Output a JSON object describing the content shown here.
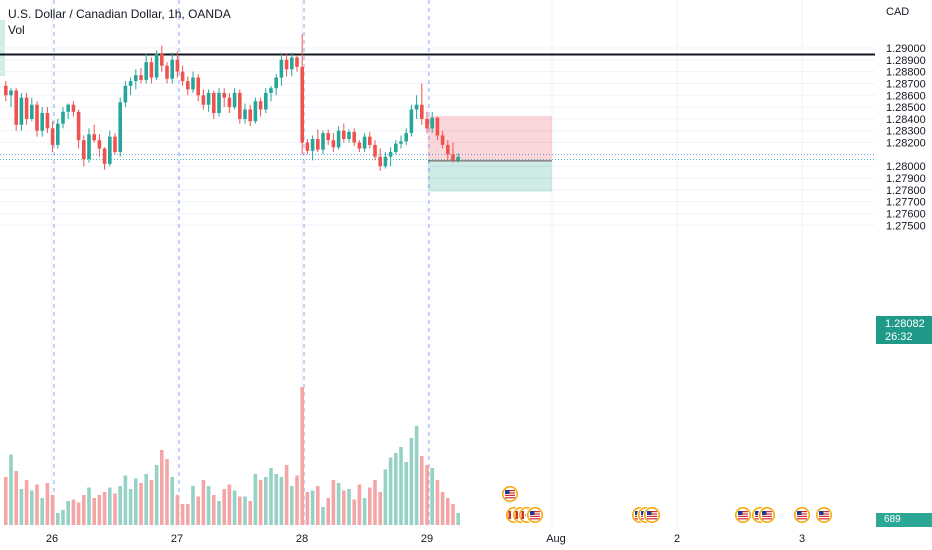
{
  "header": {
    "title": "U.S. Dollar / Canadian Dollar, 1h, OANDA",
    "indicator": "Vol"
  },
  "price_axis": {
    "currency": "CAD",
    "last_price": "1.28082",
    "countdown": "26:32",
    "ticks": [
      "1.29000",
      "1.28900",
      "1.28800",
      "1.28700",
      "1.28600",
      "1.28500",
      "1.28400",
      "1.28300",
      "1.28200",
      "1.28000",
      "1.27900",
      "1.27800",
      "1.27700",
      "1.27600",
      "1.27500"
    ]
  },
  "time_axis": {
    "labels": [
      "26",
      "27",
      "28",
      "29",
      "Aug",
      "2",
      "3"
    ]
  },
  "volume_pane": {
    "last_value": "689"
  },
  "colors": {
    "bull": "#26a69a",
    "bear": "#ef5350",
    "bull_vol": "#95d2c5",
    "bear_vol": "#f4a6a6",
    "session": "#2962ff",
    "grid": "#f0f3fa",
    "axis_text": "#131722"
  },
  "events": {
    "row1": [
      {
        "icon": "us-flag-event-icon"
      }
    ],
    "row2": [
      {
        "icon": "ca-flag-event-icon"
      },
      {
        "icon": "ca-flag-event-icon"
      },
      {
        "icon": "ca-flag-event-icon"
      },
      {
        "icon": "us-flag-event-icon"
      },
      {
        "icon": "us-flag-event-icon"
      },
      {
        "icon": "us-flag-event-icon"
      },
      {
        "icon": "us-flag-event-icon"
      },
      {
        "icon": "us-flag-event-icon"
      },
      {
        "icon": "us-flag-event-icon"
      },
      {
        "icon": "us-flag-event-icon"
      },
      {
        "icon": "us-flag-event-icon"
      }
    ]
  },
  "chart_data": {
    "type": "candlestick",
    "symbol": "USD/CAD",
    "interval": "1h",
    "ylim": [
      1.2744,
      1.292
    ],
    "resistance_level": 1.28945,
    "last_price": 1.28082,
    "position": {
      "type": "short",
      "entry": 1.28045,
      "stop": 1.28425,
      "target": 1.27785,
      "start_time": "29 ~00:00",
      "end_time": "29 ~10:00"
    },
    "ohlc": [
      [
        1.2868,
        1.2872,
        1.2855,
        1.286
      ],
      [
        1.286,
        1.2866,
        1.285,
        1.2864
      ],
      [
        1.2864,
        1.2866,
        1.283,
        1.2835
      ],
      [
        1.2835,
        1.2862,
        1.283,
        1.2858
      ],
      [
        1.2858,
        1.2862,
        1.2835,
        1.284
      ],
      [
        1.284,
        1.2858,
        1.2838,
        1.2852
      ],
      [
        1.2852,
        1.2855,
        1.2825,
        1.283
      ],
      [
        1.283,
        1.285,
        1.2825,
        1.2845
      ],
      [
        1.2845,
        1.285,
        1.2828,
        1.2832
      ],
      [
        1.2832,
        1.2838,
        1.2812,
        1.2818
      ],
      [
        1.2818,
        1.284,
        1.2815,
        1.2836
      ],
      [
        1.2836,
        1.285,
        1.2832,
        1.2846
      ],
      [
        1.2846,
        1.2853,
        1.284,
        1.2852
      ],
      [
        1.2852,
        1.2855,
        1.2842,
        1.2846
      ],
      [
        1.2846,
        1.2848,
        1.2815,
        1.2822
      ],
      [
        1.2822,
        1.2826,
        1.28,
        1.2806
      ],
      [
        1.2806,
        1.2832,
        1.2803,
        1.2827
      ],
      [
        1.2827,
        1.2835,
        1.282,
        1.2822
      ],
      [
        1.2822,
        1.2827,
        1.2808,
        1.2815
      ],
      [
        1.2815,
        1.2816,
        1.2797,
        1.2802
      ],
      [
        1.2802,
        1.283,
        1.28,
        1.2825
      ],
      [
        1.2825,
        1.2828,
        1.281,
        1.2812
      ],
      [
        1.2812,
        1.2858,
        1.2808,
        1.2854
      ],
      [
        1.2854,
        1.2872,
        1.285,
        1.2868
      ],
      [
        1.2868,
        1.2875,
        1.286,
        1.2872
      ],
      [
        1.2872,
        1.2882,
        1.2865,
        1.2877
      ],
      [
        1.2877,
        1.2883,
        1.287,
        1.2873
      ],
      [
        1.2873,
        1.2895,
        1.287,
        1.2888
      ],
      [
        1.2888,
        1.2892,
        1.287,
        1.2875
      ],
      [
        1.2875,
        1.2898,
        1.2873,
        1.2895
      ],
      [
        1.2895,
        1.2902,
        1.288,
        1.2885
      ],
      [
        1.2885,
        1.2888,
        1.287,
        1.2874
      ],
      [
        1.2874,
        1.2896,
        1.287,
        1.289
      ],
      [
        1.289,
        1.2897,
        1.2875,
        1.288
      ],
      [
        1.288,
        1.2885,
        1.2868,
        1.2872
      ],
      [
        1.2872,
        1.2876,
        1.286,
        1.2865
      ],
      [
        1.2865,
        1.288,
        1.2862,
        1.2875
      ],
      [
        1.2875,
        1.2878,
        1.2855,
        1.286
      ],
      [
        1.286,
        1.2865,
        1.2848,
        1.2852
      ],
      [
        1.2852,
        1.2865,
        1.2846,
        1.2862
      ],
      [
        1.2862,
        1.2864,
        1.284,
        1.2845
      ],
      [
        1.2845,
        1.2866,
        1.2842,
        1.2862
      ],
      [
        1.2862,
        1.2866,
        1.285,
        1.2858
      ],
      [
        1.2858,
        1.2862,
        1.2845,
        1.285
      ],
      [
        1.285,
        1.2866,
        1.2848,
        1.2862
      ],
      [
        1.2862,
        1.2865,
        1.2836,
        1.284
      ],
      [
        1.284,
        1.2853,
        1.2836,
        1.2848
      ],
      [
        1.2848,
        1.2852,
        1.2834,
        1.2838
      ],
      [
        1.2838,
        1.2858,
        1.2836,
        1.2855
      ],
      [
        1.2855,
        1.2858,
        1.2842,
        1.2848
      ],
      [
        1.2848,
        1.2866,
        1.2845,
        1.2862
      ],
      [
        1.2862,
        1.2868,
        1.2855,
        1.2866
      ],
      [
        1.2866,
        1.2878,
        1.286,
        1.2875
      ],
      [
        1.2875,
        1.2896,
        1.2868,
        1.289
      ],
      [
        1.289,
        1.2895,
        1.2876,
        1.2882
      ],
      [
        1.2882,
        1.2896,
        1.2876,
        1.2892
      ],
      [
        1.2892,
        1.2894,
        1.288,
        1.2884
      ],
      [
        1.2884,
        1.2912,
        1.281,
        1.282
      ],
      [
        1.282,
        1.2823,
        1.281,
        1.2813
      ],
      [
        1.2813,
        1.2826,
        1.2805,
        1.2823
      ],
      [
        1.2823,
        1.2831,
        1.2812,
        1.2814
      ],
      [
        1.2814,
        1.283,
        1.281,
        1.2828
      ],
      [
        1.2828,
        1.2831,
        1.2818,
        1.2822
      ],
      [
        1.2822,
        1.2828,
        1.2812,
        1.2816
      ],
      [
        1.2816,
        1.2834,
        1.2814,
        1.283
      ],
      [
        1.283,
        1.2836,
        1.282,
        1.2823
      ],
      [
        1.2823,
        1.2831,
        1.282,
        1.2829
      ],
      [
        1.2829,
        1.2832,
        1.2817,
        1.282
      ],
      [
        1.282,
        1.2822,
        1.2812,
        1.2815
      ],
      [
        1.2815,
        1.2828,
        1.2812,
        1.2825
      ],
      [
        1.2825,
        1.2829,
        1.2815,
        1.2818
      ],
      [
        1.2818,
        1.2822,
        1.2805,
        1.2808
      ],
      [
        1.2808,
        1.2815,
        1.2796,
        1.28
      ],
      [
        1.28,
        1.2812,
        1.2798,
        1.2808
      ],
      [
        1.2808,
        1.2816,
        1.28,
        1.2812
      ],
      [
        1.2812,
        1.2822,
        1.281,
        1.2819
      ],
      [
        1.2819,
        1.2826,
        1.2815,
        1.2821
      ],
      [
        1.2821,
        1.2832,
        1.2818,
        1.2828
      ],
      [
        1.2828,
        1.2852,
        1.2825,
        1.2848
      ],
      [
        1.2848,
        1.286,
        1.284,
        1.2852
      ],
      [
        1.2852,
        1.287,
        1.2835,
        1.284
      ],
      [
        1.284,
        1.2846,
        1.2828,
        1.2832
      ],
      [
        1.2832,
        1.2846,
        1.2828,
        1.2841
      ],
      [
        1.2841,
        1.2842,
        1.2822,
        1.2826
      ],
      [
        1.2826,
        1.283,
        1.2815,
        1.2818
      ],
      [
        1.2818,
        1.2822,
        1.2805,
        1.281
      ],
      [
        1.281,
        1.282,
        1.2803,
        1.2805
      ],
      [
        1.2805,
        1.2811,
        1.2803,
        1.2808
      ]
    ],
    "volume_scale": [
      0,
      100
    ],
    "volumes": [
      32,
      47,
      36,
      24,
      30,
      23,
      27,
      18,
      28,
      20,
      8,
      10,
      16,
      17,
      15,
      20,
      25,
      18,
      20,
      22,
      25,
      21,
      26,
      33,
      24,
      31,
      28,
      34,
      30,
      40,
      50,
      44,
      32,
      20,
      14,
      14,
      26,
      19,
      30,
      26,
      20,
      16,
      24,
      27,
      23,
      19,
      19,
      16,
      34,
      30,
      32,
      38,
      34,
      32,
      40,
      26,
      33,
      92,
      22,
      23,
      26,
      12,
      18,
      30,
      28,
      23,
      24,
      17,
      27,
      18,
      25,
      30,
      22,
      37,
      45,
      48,
      52,
      42,
      58,
      66,
      46,
      40,
      38,
      30,
      22,
      18,
      14,
      8
    ]
  }
}
